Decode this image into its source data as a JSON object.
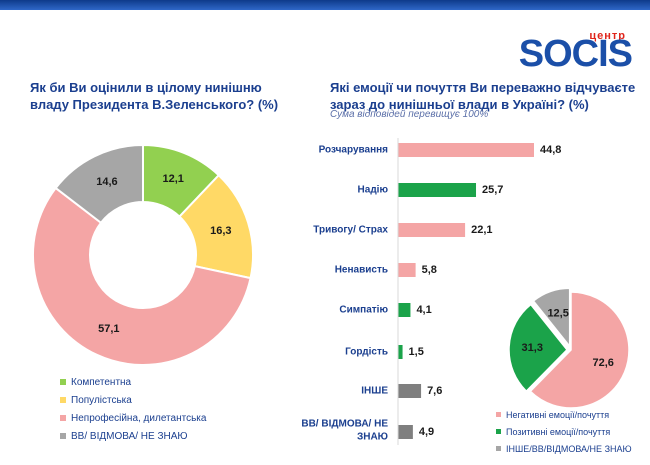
{
  "brand": {
    "sub": "центр",
    "name": "SOCIS"
  },
  "left_question": "Як би Ви оцінили в цілому нинішню владу Президента В.Зеленського? (%)",
  "right_question": "Які емоції чи почуття Ви переважно відчуваєте зараз до нинішньої влади в Україні? (%)",
  "right_note": "Сума відповідей перевищує 100%",
  "colors": {
    "green": "#92d050",
    "yellow": "#ffd966",
    "pink": "#f4a5a5",
    "gray": "#a6a6a6",
    "dark_green": "#1ba34a",
    "dark_gray": "#7f7f7f",
    "title": "#1b3f8f"
  },
  "chart_data": [
    {
      "type": "pie",
      "subtype": "donut",
      "title": "Як би Ви оцінили в цілому нинішню владу Президента В.Зеленського? (%)",
      "categories": [
        "Компетентна",
        "Популістська",
        "Непрофесійна, дилетантська",
        "ВВ/ ВІДМОВА/ НЕ ЗНАЮ"
      ],
      "values": [
        12.1,
        16.3,
        57.1,
        14.6
      ],
      "colors": [
        "#92d050",
        "#ffd966",
        "#f4a5a5",
        "#a6a6a6"
      ],
      "labels": [
        "12,1",
        "16,3",
        "57,1",
        "14,6"
      ],
      "legend": "bottom-left"
    },
    {
      "type": "bar",
      "orientation": "horizontal",
      "title": "Які емоції чи почуття Ви переважно відчуваєте зараз до нинішньої влади в Україні? (%)",
      "categories": [
        "Розчарування",
        "Надію",
        "Тривогу/ Страх",
        "Ненависть",
        "Симпатію",
        "Гордість",
        "ІНШЕ",
        "ВВ/ ВІДМОВА/ НЕ ЗНАЮ"
      ],
      "values": [
        44.8,
        25.7,
        22.1,
        5.8,
        4.1,
        1.5,
        7.6,
        4.9
      ],
      "labels": [
        "44,8",
        "25,7",
        "22,1",
        "5,8",
        "4,1",
        "1,5",
        "7,6",
        "4,9"
      ],
      "colors": [
        "#f4a5a5",
        "#1ba34a",
        "#f4a5a5",
        "#f4a5a5",
        "#1ba34a",
        "#1ba34a",
        "#7f7f7f",
        "#7f7f7f"
      ],
      "xlim": [
        0,
        50
      ],
      "grid": false
    },
    {
      "type": "pie",
      "categories": [
        "Негативні емоції/почуття",
        "Позитивні емоції/почуття",
        "ІНШЕ/ВВ/ВІДМОВА/НЕ ЗНАЮ"
      ],
      "values": [
        72.6,
        31.3,
        12.5
      ],
      "colors": [
        "#f4a5a5",
        "#1ba34a",
        "#a6a6a6"
      ],
      "labels": [
        "72,6",
        "31,3",
        "12,5"
      ],
      "legend": "bottom"
    }
  ]
}
